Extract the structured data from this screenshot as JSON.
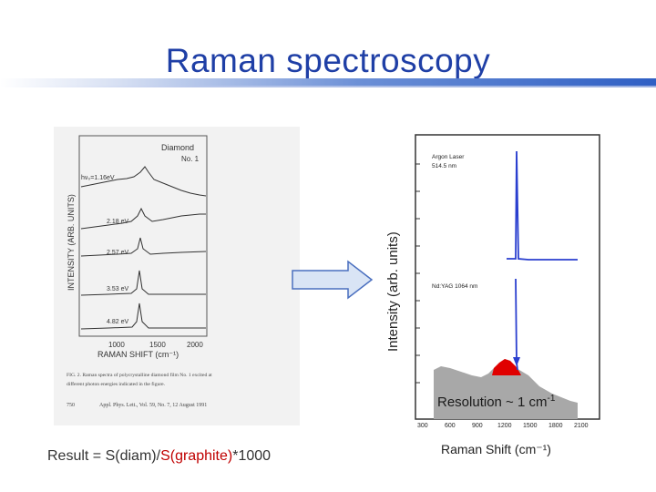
{
  "slide": {
    "title": "Raman spectroscopy"
  },
  "left_figure": {
    "ylabel": "INTENSITY (ARB. UNITS)",
    "xlabel": "RAMAN SHIFT (cm⁻¹)",
    "legend_top": "Diamond",
    "legend_sub": "No. 1",
    "traces": [
      "hν₀=1.16eV",
      "2.18 eV",
      "2.57 eV",
      "3.53 eV",
      "4.82 eV"
    ],
    "xticks": [
      "1000",
      "1500",
      "2000"
    ],
    "caption": "FIG. 2. Raman spectra of polycrystalline diamond film No. 1 excited at different photon energies indicated in the figure.",
    "caption_l1": "FIG. 2. Raman spectra of polycrystalline diamond film No. 1 excited at",
    "caption_l2": "different photon energies indicated in the figure.",
    "journal_page": "750",
    "journal": "Appl. Phys. Lett., Vol. 59, No. 7, 12 August 1991"
  },
  "right_figure": {
    "ylabel": "Intensity (arb. units)",
    "xlabel": "Raman Shift (cm⁻¹)",
    "top_label_1": "Argon Laser",
    "top_label_2": "514.5 nm",
    "mid_label": "Nd:YAG 1064 nm",
    "xticks": [
      "300",
      "600",
      "900",
      "1200",
      "1500",
      "1800",
      "2100"
    ],
    "resolution_text": "Resolution ~ 1 cm",
    "resolution_sup": "-1"
  },
  "result": {
    "prefix": "Result = ",
    "numerator": "S(diam)",
    "slash": "/",
    "denominator": "S(graphite)",
    "suffix": "*1000"
  },
  "colors": {
    "title": "#1f3fa6",
    "arrow_fill": "#d9e4f5",
    "arrow_stroke": "#4a6fbf",
    "spectrum_line": "#2a3fcf",
    "red_fill": "#e00000",
    "gray_fill": "#a8a8a8"
  }
}
